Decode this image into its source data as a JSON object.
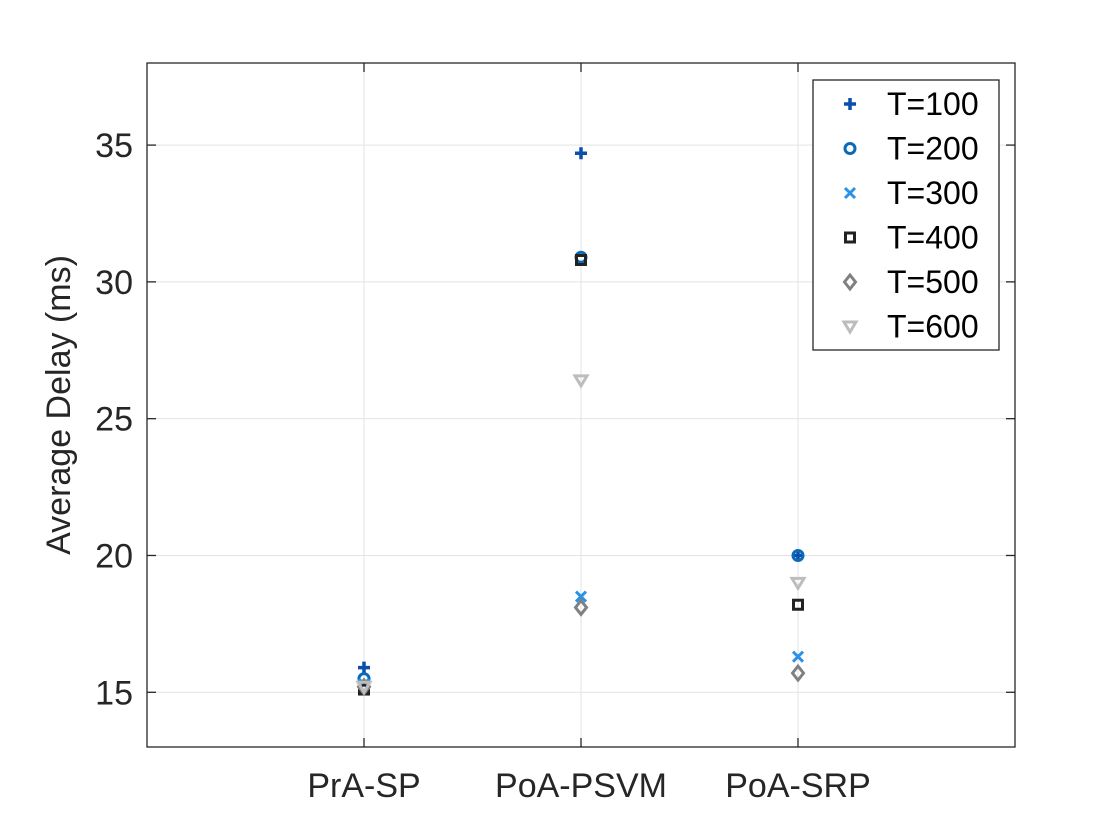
{
  "chart_data": {
    "type": "scatter",
    "title": "",
    "xlabel": "",
    "ylabel": "Average Delay (ms)",
    "categories": [
      "PrA-SP",
      "PoA-PSVM",
      "PoA-SRP"
    ],
    "xlim": [
      0,
      4
    ],
    "ylim": [
      13,
      38
    ],
    "yticks": [
      15,
      20,
      25,
      30,
      35
    ],
    "grid": true,
    "legend_position": "top-right",
    "series": [
      {
        "name": "T=100",
        "marker": "plus",
        "color": "#0a4fa8",
        "values": [
          15.9,
          34.7,
          20.0
        ]
      },
      {
        "name": "T=200",
        "marker": "circle",
        "color": "#0b6ab8",
        "values": [
          15.5,
          30.9,
          20.0
        ]
      },
      {
        "name": "T=300",
        "marker": "x",
        "color": "#2a93e8",
        "values": [
          15.3,
          18.5,
          16.3
        ]
      },
      {
        "name": "T=400",
        "marker": "square",
        "color": "#222222",
        "values": [
          15.1,
          30.8,
          18.2
        ]
      },
      {
        "name": "T=500",
        "marker": "diamond",
        "color": "#808080",
        "values": [
          15.2,
          18.1,
          15.7
        ]
      },
      {
        "name": "T=600",
        "marker": "triangle-down",
        "color": "#bdbdbd",
        "values": [
          15.2,
          26.4,
          19.0
        ]
      }
    ]
  }
}
